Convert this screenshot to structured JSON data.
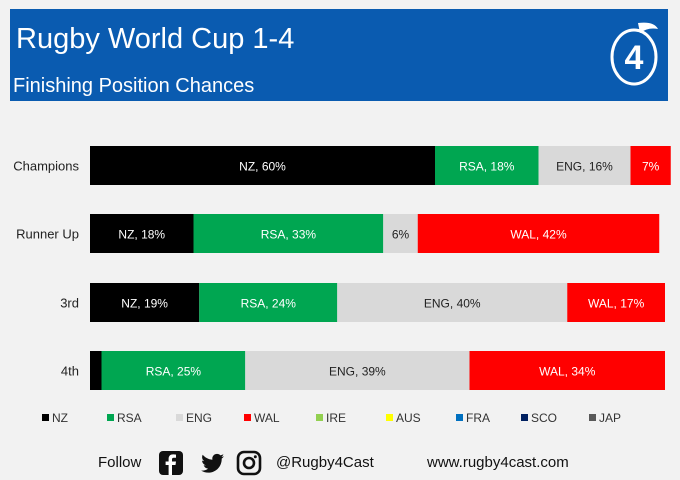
{
  "header": {
    "title": "Rugby World Cup 1-4",
    "subtitle": "Finishing Position Chances",
    "logo_text": "4"
  },
  "colors": {
    "header_bg": "#0a5bb0",
    "NZ": "#000000",
    "RSA": "#00a651",
    "ENG": "#d9d9d9",
    "WAL": "#ff0000",
    "IRE": "#92d050",
    "AUS": "#ffff00",
    "FRA": "#0070c0",
    "SCO": "#002060",
    "JAP": "#595959"
  },
  "chart_data": {
    "type": "bar",
    "orientation": "horizontal",
    "stacked": true,
    "categories": [
      "Champions",
      "Runner Up",
      "3rd",
      "4th"
    ],
    "xlim": [
      0,
      100
    ],
    "unit": "%",
    "legend_position": "bottom",
    "series": [
      {
        "name": "NZ",
        "values": [
          60,
          18,
          19,
          2
        ],
        "labels": [
          "NZ, 60%",
          "NZ, 18%",
          "NZ, 19%",
          ""
        ]
      },
      {
        "name": "RSA",
        "values": [
          18,
          33,
          24,
          25
        ],
        "labels": [
          "RSA, 18%",
          "RSA, 33%",
          "RSA, 24%",
          "RSA, 25%"
        ]
      },
      {
        "name": "ENG",
        "values": [
          16,
          6,
          40,
          39
        ],
        "labels": [
          "ENG, 16%",
          "6%",
          "ENG, 40%",
          "ENG, 39%"
        ]
      },
      {
        "name": "WAL",
        "values": [
          7,
          42,
          17,
          34
        ],
        "labels": [
          "7%",
          "WAL, 42%",
          "WAL, 17%",
          "WAL, 34%"
        ]
      },
      {
        "name": "IRE",
        "values": [
          0,
          0,
          0,
          0
        ],
        "labels": [
          "",
          "",
          "",
          ""
        ]
      },
      {
        "name": "AUS",
        "values": [
          0,
          0,
          0,
          0
        ],
        "labels": [
          "",
          "",
          "",
          ""
        ]
      },
      {
        "name": "FRA",
        "values": [
          0,
          0,
          0,
          0
        ],
        "labels": [
          "",
          "",
          "",
          ""
        ]
      },
      {
        "name": "SCO",
        "values": [
          0,
          0,
          0,
          0
        ],
        "labels": [
          "",
          "",
          "",
          ""
        ]
      },
      {
        "name": "JAP",
        "values": [
          0,
          0,
          0,
          0
        ],
        "labels": [
          "",
          "",
          "",
          ""
        ]
      }
    ]
  },
  "footer": {
    "follow": "Follow",
    "handle": "@Rugby4Cast",
    "website": "www.rugby4cast.com",
    "icons": [
      "facebook-icon",
      "twitter-icon",
      "instagram-icon"
    ]
  }
}
